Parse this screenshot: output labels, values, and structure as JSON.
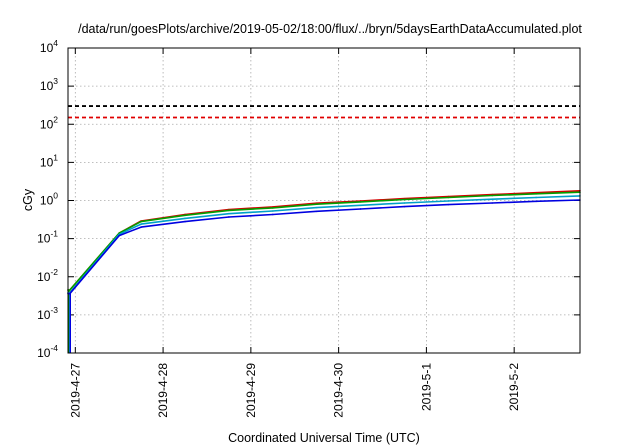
{
  "chart_data": {
    "type": "line",
    "title": "/data/run/goesPlots/archive/2019-05-02/18:00/flux/../bryn/5daysEarthDataAccumulated.plot",
    "xlabel": "Coordinated Universal Time (UTC)",
    "ylabel": "cGy",
    "xlim": [
      "2019-04-26T22:00",
      "2019-05-02T18:00"
    ],
    "ylim": [
      0.0001,
      10000
    ],
    "yscale": "log",
    "grid": true,
    "x_ticks": [
      "2019-4-27",
      "2019-4-28",
      "2019-4-29",
      "2019-4-30",
      "2019-5-1",
      "2019-5-2"
    ],
    "y_ticks": [
      {
        "base": "10",
        "exp": "-4"
      },
      {
        "base": "10",
        "exp": "-3"
      },
      {
        "base": "10",
        "exp": "-2"
      },
      {
        "base": "10",
        "exp": "-1"
      },
      {
        "base": "10",
        "exp": "0"
      },
      {
        "base": "10",
        "exp": "1"
      },
      {
        "base": "10",
        "exp": "2"
      },
      {
        "base": "10",
        "exp": "3"
      },
      {
        "base": "10",
        "exp": "4"
      }
    ],
    "thresholds": [
      {
        "value": 300,
        "color": "#000000",
        "style": "dashed"
      },
      {
        "value": 150,
        "color": "#e00000",
        "style": "dashed"
      }
    ],
    "series": [
      {
        "color": "#d40000",
        "x": [
          "2019-04-26T22:00",
          "2019-04-26T22:30",
          "2019-04-27T12:00",
          "2019-04-27T18:00",
          "2019-04-28T06:00",
          "2019-04-28T18:00",
          "2019-04-29T06:00",
          "2019-04-29T18:00",
          "2019-04-30T06:00",
          "2019-04-30T18:00",
          "2019-05-01T06:00",
          "2019-05-01T18:00",
          "2019-05-02T06:00",
          "2019-05-02T18:00"
        ],
        "y": [
          0.0045,
          0.0045,
          0.14,
          0.29,
          0.43,
          0.58,
          0.68,
          0.85,
          0.97,
          1.12,
          1.27,
          1.43,
          1.6,
          1.8
        ]
      },
      {
        "color": "#00a000",
        "x": [
          "2019-04-26T22:00",
          "2019-04-26T22:30",
          "2019-04-27T12:00",
          "2019-04-27T18:00",
          "2019-04-28T06:00",
          "2019-04-28T18:00",
          "2019-04-29T06:00",
          "2019-04-29T18:00",
          "2019-04-30T06:00",
          "2019-04-30T18:00",
          "2019-05-01T06:00",
          "2019-05-01T18:00",
          "2019-05-02T06:00",
          "2019-05-02T18:00"
        ],
        "y": [
          0.0045,
          0.0045,
          0.14,
          0.28,
          0.41,
          0.55,
          0.64,
          0.8,
          0.92,
          1.06,
          1.2,
          1.35,
          1.5,
          1.65
        ]
      },
      {
        "color": "#00a0c8",
        "x": [
          "2019-04-26T22:00",
          "2019-04-26T22:30",
          "2019-04-27T12:00",
          "2019-04-27T18:00",
          "2019-04-28T06:00",
          "2019-04-28T18:00",
          "2019-04-29T06:00",
          "2019-04-29T18:00",
          "2019-04-30T06:00",
          "2019-04-30T18:00",
          "2019-05-01T06:00",
          "2019-05-01T18:00",
          "2019-05-02T06:00",
          "2019-05-02T18:00"
        ],
        "y": [
          0.0038,
          0.0038,
          0.13,
          0.24,
          0.34,
          0.45,
          0.53,
          0.65,
          0.75,
          0.86,
          0.97,
          1.08,
          1.2,
          1.32
        ]
      },
      {
        "color": "#0000e0",
        "x": [
          "2019-04-26T22:00",
          "2019-04-26T22:30",
          "2019-04-27T12:00",
          "2019-04-27T18:00",
          "2019-04-28T06:00",
          "2019-04-28T18:00",
          "2019-04-29T06:00",
          "2019-04-29T18:00",
          "2019-04-30T06:00",
          "2019-04-30T18:00",
          "2019-05-01T06:00",
          "2019-05-01T18:00",
          "2019-05-02T06:00",
          "2019-05-02T18:00"
        ],
        "y": [
          0.0036,
          0.0036,
          0.12,
          0.2,
          0.28,
          0.37,
          0.43,
          0.52,
          0.6,
          0.69,
          0.78,
          0.86,
          0.95,
          1.03
        ]
      }
    ]
  }
}
